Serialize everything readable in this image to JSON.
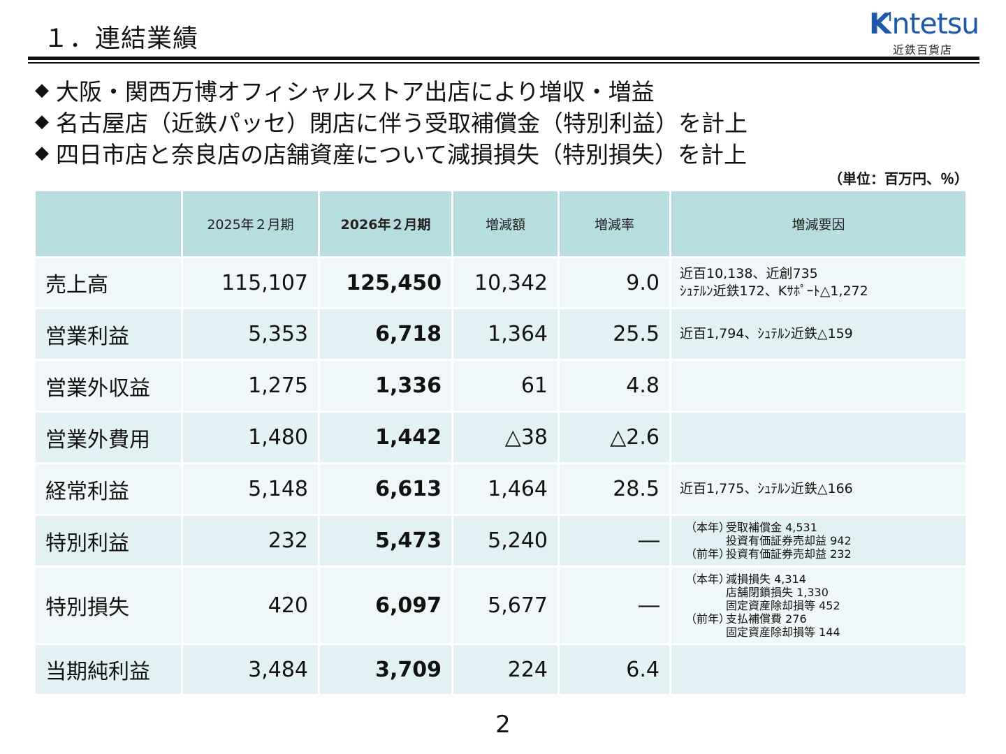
{
  "header": {
    "title": "１．連結業績",
    "logo_text": "Kintetsu",
    "logo_sub": "近鉄百貨店"
  },
  "bullets": [
    "大阪・関西万博オフィシャルストア出店により増収・増益",
    "名古屋店（近鉄パッセ）閉店に伴う受取補償金（特別利益）を計上",
    "四日市店と奈良店の店舗資産について減損損失（特別損失）を計上"
  ],
  "bullet_symbol": "◆",
  "unit": "（単位：百万円、％）",
  "table": {
    "headers": [
      "",
      "2025年２月期",
      "2026年２月期",
      "増減額",
      "増減率",
      "増減要因"
    ],
    "rows": [
      {
        "label": "売上高",
        "prev": "115,107",
        "curr": "125,450",
        "diff": "10,342",
        "rate": "9.0",
        "notes": [
          "近百10,138、近創735",
          "ｼｭﾃﾙﾝ近鉄172、Kｻﾎﾟｰﾄ△1,272"
        ]
      },
      {
        "label": "営業利益",
        "prev": "5,353",
        "curr": "6,718",
        "diff": "1,364",
        "rate": "25.5",
        "notes": [
          "近百1,794、ｼｭﾃﾙﾝ近鉄△159"
        ]
      },
      {
        "label": "営業外収益",
        "prev": "1,275",
        "curr": "1,336",
        "diff": "61",
        "rate": "4.8",
        "notes": []
      },
      {
        "label": "営業外費用",
        "prev": "1,480",
        "curr": "1,442",
        "diff": "△38",
        "rate": "△2.6",
        "notes": []
      },
      {
        "label": "経常利益",
        "prev": "5,148",
        "curr": "6,613",
        "diff": "1,464",
        "rate": "28.5",
        "notes": [
          "近百1,775、ｼｭﾃﾙﾝ近鉄△166"
        ]
      },
      {
        "label": "特別利益",
        "prev": "232",
        "curr": "5,473",
        "diff": "5,240",
        "rate": "―",
        "notes": [
          {
            "tag": "（本年）",
            "text": "受取補償金 4,531"
          },
          {
            "tag": "",
            "text": "投資有価証券売却益 942"
          },
          {
            "tag": "（前年）",
            "text": "投資有価証券売却益 232"
          }
        ]
      },
      {
        "label": "特別損失",
        "prev": "420",
        "curr": "6,097",
        "diff": "5,677",
        "rate": "―",
        "notes": [
          {
            "tag": "（本年）",
            "text": "減損損失 4,314"
          },
          {
            "tag": "",
            "text": "店舗閉鎖損失 1,330"
          },
          {
            "tag": "",
            "text": "固定資産除却損等 452"
          },
          {
            "tag": "（前年）",
            "text": "支払補償費 276"
          },
          {
            "tag": "",
            "text": "固定資産除却損等 144"
          }
        ]
      },
      {
        "label": "当期純利益",
        "prev": "3,484",
        "curr": "3,709",
        "diff": "224",
        "rate": "6.4",
        "notes": []
      }
    ]
  },
  "page_number": "2"
}
